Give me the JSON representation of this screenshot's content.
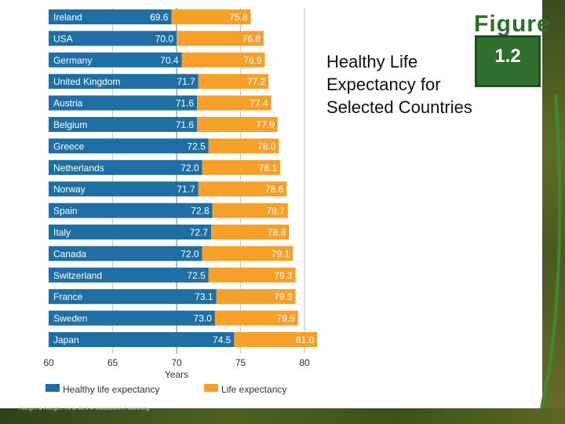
{
  "title": "Healthy Life Expectancy for Selected Countries",
  "figure_label": "Figure",
  "figure_number": "1.2",
  "credit": "Hoeger & Hoeger: Fit & Well  © Wadsworth Publishing",
  "colors": {
    "healthy": "#1f6fa5",
    "life": "#f5a02a",
    "accent": "#2f6e2f"
  },
  "chart_data": {
    "type": "bar",
    "orientation": "horizontal",
    "title": "Healthy Life Expectancy for Selected Countries",
    "xlabel": "Years",
    "xlim": [
      60,
      80
    ],
    "xticks": [
      "60",
      "65",
      "70",
      "75",
      "80"
    ],
    "categories": [
      "Ireland",
      "USA",
      "Germany",
      "United Kingdom",
      "Austria",
      "Belgium",
      "Greece",
      "Netherlands",
      "Norway",
      "Spain",
      "Italy",
      "Canada",
      "Switzerland",
      "France",
      "Sweden",
      "Japan"
    ],
    "series": [
      {
        "name": "Healthy life expectancy",
        "values": [
          69.6,
          70.0,
          70.4,
          71.7,
          71.6,
          71.6,
          72.5,
          72.0,
          71.7,
          72.8,
          72.7,
          72.0,
          72.5,
          73.1,
          73.0,
          74.5
        ],
        "labels": [
          "69.6",
          "70.0",
          "70.4",
          "71.7",
          "71.6",
          "71.6",
          "72.5",
          "72.0",
          "71.7",
          "72.8",
          "72.7",
          "72.0",
          "72.5",
          "73.1",
          "73.0",
          "74.5"
        ]
      },
      {
        "name": "Life expectancy",
        "values": [
          75.8,
          76.8,
          76.9,
          77.2,
          77.4,
          77.9,
          78.0,
          78.1,
          78.6,
          78.7,
          78.8,
          79.1,
          79.3,
          79.3,
          79.5,
          81.0
        ],
        "labels": [
          "75.8",
          "76.8",
          "76.9",
          "77.2",
          "77.4",
          "77.9",
          "78.0",
          "78.1",
          "78.6",
          "78.7",
          "78.8",
          "79.1",
          "79.3",
          "79.3",
          "79.5",
          "81.0"
        ]
      }
    ],
    "legend": [
      "Healthy life expectancy",
      "Life expectancy"
    ],
    "legend_position": "bottom"
  }
}
